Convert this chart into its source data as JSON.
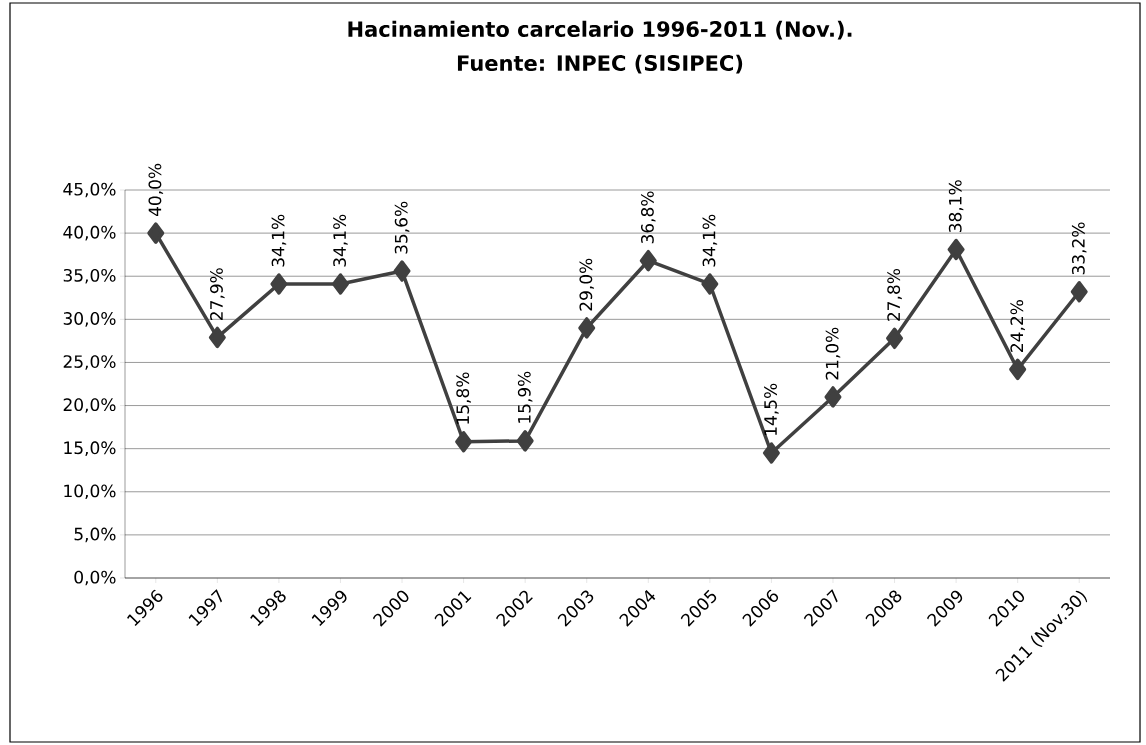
{
  "chart_data": {
    "type": "line",
    "title": "Hacinamiento carcelario 1996-2011 (Nov.).",
    "subtitle": "Fuente: INPEC (SISIPEC)",
    "categories": [
      "1996",
      "1997",
      "1998",
      "1999",
      "2000",
      "2001",
      "2002",
      "2003",
      "2004",
      "2005",
      "2006",
      "2007",
      "2008",
      "2009",
      "2010",
      "2011 (Nov.30)"
    ],
    "series": [
      {
        "color": "#404040",
        "values": [
          40.0,
          27.9,
          34.1,
          34.1,
          35.6,
          15.8,
          15.9,
          29.0,
          36.8,
          34.1,
          14.5,
          21.0,
          27.8,
          38.1,
          24.2,
          33.2
        ]
      }
    ],
    "value_labels": [
      "40,0%",
      "27,9%",
      "34,1%",
      "34,1%",
      "35,6%",
      "15,8%",
      "15,9%",
      "29,0%",
      "36,8%",
      "34,1%",
      "14,5%",
      "21,0%",
      "27,8%",
      "38,1%",
      "24,2%",
      "33,2%"
    ],
    "ylim": [
      0,
      45
    ],
    "yticks": [
      {
        "value": 0,
        "label": "0,0%"
      },
      {
        "value": 5,
        "label": "5,0%"
      },
      {
        "value": 10,
        "label": "10,0%"
      },
      {
        "value": 15,
        "label": "15,0%"
      },
      {
        "value": 20,
        "label": "20,0%"
      },
      {
        "value": 25,
        "label": "25,0%"
      },
      {
        "value": 30,
        "label": "30,0%"
      },
      {
        "value": 35,
        "label": "35,0%"
      },
      {
        "value": 40,
        "label": "40,0%"
      },
      {
        "value": 45,
        "label": "45,0%"
      }
    ],
    "grid": "y",
    "marker": "diamond",
    "line_style": "solid"
  }
}
